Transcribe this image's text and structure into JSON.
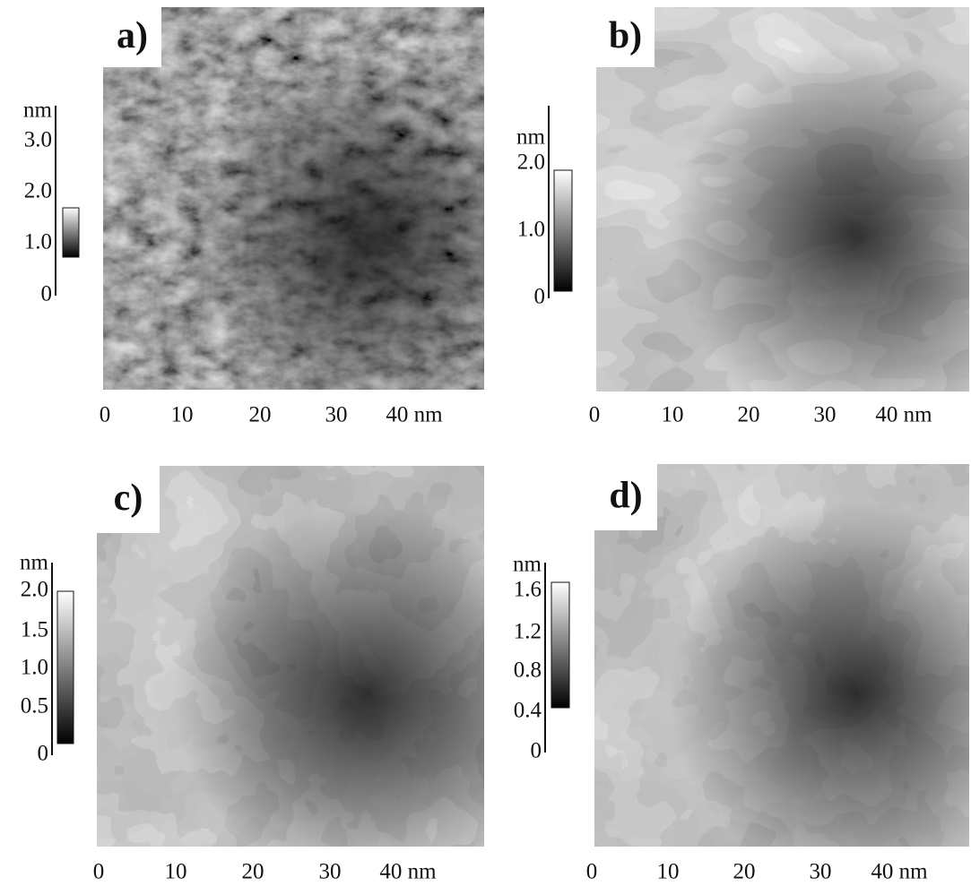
{
  "panels": [
    {
      "label": "a)",
      "unit": "nm",
      "scale_ticks": [
        "3.0",
        "2.0",
        "1.0",
        "0"
      ],
      "x_ticks": [
        "0",
        "10",
        "20",
        "30",
        "40 nm"
      ]
    },
    {
      "label": "b)",
      "unit": "nm",
      "scale_ticks": [
        "2.0",
        "1.0",
        "0"
      ],
      "x_ticks": [
        "0",
        "10",
        "20",
        "30",
        "40 nm"
      ]
    },
    {
      "label": "c)",
      "unit": "nm",
      "scale_ticks": [
        "2.0",
        "1.5",
        "1.0",
        "0.5",
        "0"
      ],
      "x_ticks": [
        "0",
        "10",
        "20",
        "30",
        "40 nm"
      ]
    },
    {
      "label": "d)",
      "unit": "nm",
      "scale_ticks": [
        "1.6",
        "1.2",
        "0.8",
        "0.4",
        "0"
      ],
      "x_ticks": [
        "0",
        "10",
        "20",
        "30",
        "40 nm"
      ]
    }
  ]
}
